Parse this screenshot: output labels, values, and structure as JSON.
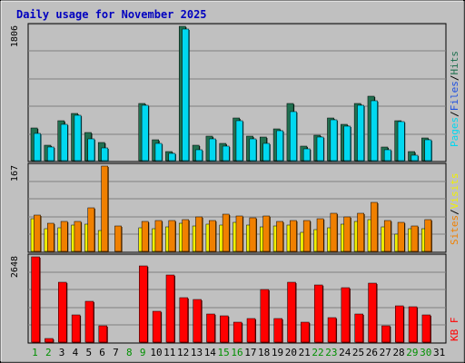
{
  "title": "Daily usage for November 2025",
  "colors": {
    "background": "#c0c0c0",
    "grid": "#808080",
    "pages": "#00d8f0",
    "files": "#2050e0",
    "hits": "#207050",
    "sites": "#f08000",
    "visits": "#f0f000",
    "kbytes": "#ff0000",
    "title": "#0000c0",
    "weekday": "#000000",
    "weekend": "#009000",
    "separator": "#000000"
  },
  "labels": {
    "pages": "Pages",
    "files": "Files",
    "hits": "Hits",
    "sites": "Sites",
    "visits": "Visits",
    "kbf": "KB F",
    "slash": "/"
  },
  "chart_data": [
    {
      "type": "bar",
      "name": "hits-pages",
      "ymax_label": "1806",
      "ylim": [
        0,
        1806
      ],
      "categories": [
        "1",
        "2",
        "3",
        "4",
        "5",
        "6",
        "7",
        "8",
        "9",
        "10",
        "11",
        "12",
        "13",
        "14",
        "15",
        "16",
        "17",
        "18",
        "19",
        "20",
        "21",
        "22",
        "23",
        "24",
        "25",
        "26",
        "27",
        "28",
        "29",
        "30",
        "31"
      ],
      "series": [
        {
          "name": "Hits",
          "values": [
            442,
            213,
            532,
            630,
            373,
            249,
            0,
            0,
            773,
            275,
            122,
            1806,
            206,
            324,
            226,
            568,
            330,
            318,
            429,
            773,
            195,
            336,
            568,
            490,
            773,
            864,
            183,
            542,
            118,
            309,
            0
          ]
        },
        {
          "name": "Pages",
          "values": [
            361,
            187,
            493,
            610,
            295,
            176,
            0,
            0,
            741,
            230,
            97,
            1768,
            143,
            292,
            194,
            536,
            298,
            227,
            397,
            662,
            163,
            317,
            552,
            461,
            741,
            806,
            143,
            528,
            73,
            282,
            0
          ]
        }
      ]
    },
    {
      "type": "bar",
      "name": "visits-sites",
      "ymax_label": "167",
      "ylim": [
        0,
        167
      ],
      "categories": [
        "1",
        "2",
        "3",
        "4",
        "5",
        "6",
        "7",
        "8",
        "9",
        "10",
        "11",
        "12",
        "13",
        "14",
        "15",
        "16",
        "17",
        "18",
        "19",
        "20",
        "21",
        "22",
        "23",
        "24",
        "25",
        "26",
        "27",
        "28",
        "29",
        "30",
        "31"
      ],
      "series": [
        {
          "name": "Visits",
          "values": [
            64,
            44,
            47,
            51,
            53,
            40,
            0,
            0,
            46,
            45,
            48,
            55,
            49,
            53,
            51,
            57,
            51,
            48,
            49,
            51,
            37,
            43,
            46,
            54,
            59,
            62,
            48,
            33,
            45,
            44,
            0
          ]
        },
        {
          "name": "Sites",
          "values": [
            71,
            55,
            59,
            59,
            86,
            167,
            49,
            0,
            58,
            60,
            60,
            63,
            67,
            60,
            72,
            70,
            66,
            70,
            59,
            61,
            60,
            64,
            74,
            67,
            75,
            96,
            60,
            57,
            50,
            63,
            0
          ]
        }
      ]
    },
    {
      "type": "bar",
      "name": "kbytes",
      "ymax_label": "2648",
      "ylim": [
        0,
        2648
      ],
      "categories": [
        "1",
        "2",
        "3",
        "4",
        "5",
        "6",
        "7",
        "8",
        "9",
        "10",
        "11",
        "12",
        "13",
        "14",
        "15",
        "16",
        "17",
        "18",
        "19",
        "20",
        "21",
        "22",
        "23",
        "24",
        "25",
        "26",
        "27",
        "28",
        "29",
        "30",
        "31"
      ],
      "series": [
        {
          "name": "KBytes",
          "values": [
            2648,
            101,
            1847,
            836,
            1266,
            502,
            0,
            0,
            2369,
            946,
            2077,
            1370,
            1336,
            864,
            808,
            620,
            725,
            1626,
            725,
            1853,
            620,
            1778,
            767,
            1682,
            864,
            1818,
            516,
            1136,
            1096,
            835,
            0
          ]
        }
      ]
    }
  ]
}
